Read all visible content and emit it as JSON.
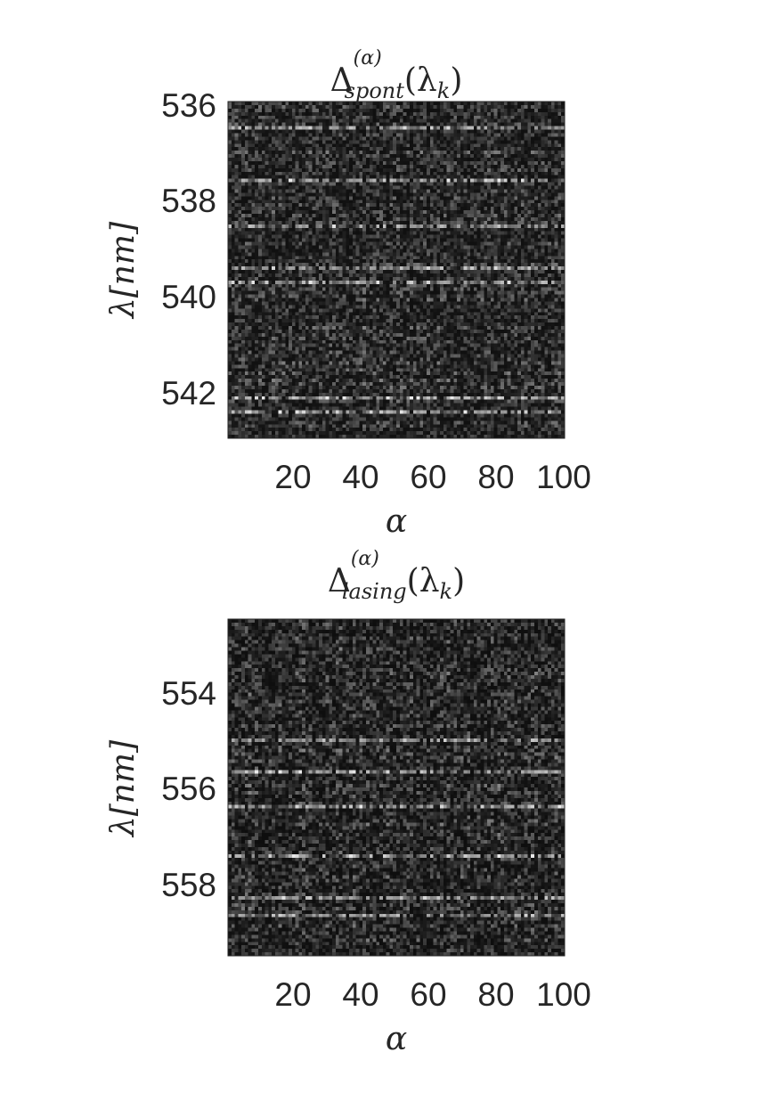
{
  "chart_data": [
    {
      "type": "heatmap",
      "title": {
        "symbol": "Δ",
        "superscript": "(α)",
        "subscript": "spont",
        "argument": "(λ",
        "argument_sub": "k",
        "argument_close": ")"
      },
      "xlabel": "α",
      "ylabel": "λ[nm]",
      "xticks": [
        20,
        40,
        60,
        80,
        100
      ],
      "yticks": [
        536,
        538,
        540,
        542
      ],
      "xlim": [
        0.5,
        100.5
      ],
      "ylim": [
        536,
        543
      ],
      "y_direction": "reversed",
      "colormap": "gray",
      "grid": {
        "cols": 100,
        "rows": 96
      },
      "texture": {
        "seed": 17,
        "base": 40,
        "contrast": 95,
        "row_weight": 0.55,
        "col_weight": 0.15,
        "bright_rows": [
          0.07,
          0.23,
          0.36,
          0.49,
          0.53,
          0.88,
          0.92
        ]
      }
    },
    {
      "type": "heatmap",
      "title": {
        "symbol": "Δ",
        "superscript": "(α)",
        "subscript": "lasing",
        "argument": "(λ",
        "argument_sub": "k",
        "argument_close": ")"
      },
      "xlabel": "α",
      "ylabel": "λ[nm]",
      "xticks": [
        20,
        40,
        60,
        80,
        100
      ],
      "yticks": [
        554,
        556,
        558
      ],
      "xlim": [
        0.5,
        100.5
      ],
      "ylim": [
        552.6,
        559.6
      ],
      "y_direction": "reversed",
      "colormap": "gray",
      "grid": {
        "cols": 100,
        "rows": 96
      },
      "texture": {
        "seed": 91,
        "base": 35,
        "contrast": 90,
        "row_weight": 0.35,
        "col_weight": 0.45,
        "bright_rows": [
          0.35,
          0.45,
          0.55,
          0.7,
          0.82,
          0.87
        ]
      }
    }
  ]
}
